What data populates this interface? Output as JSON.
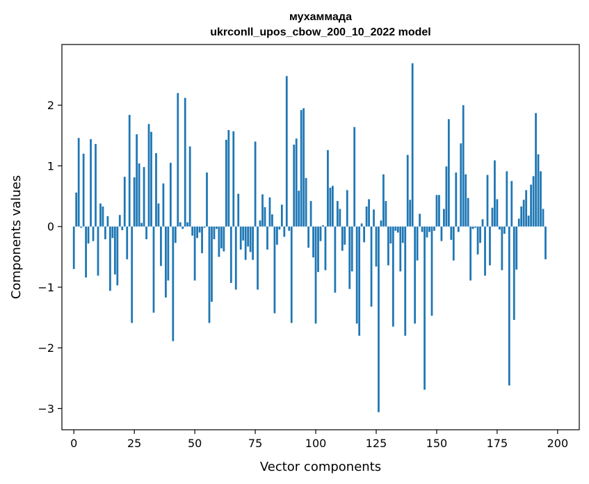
{
  "chart_data": {
    "type": "bar",
    "title_lines": [
      "мухаммада",
      "ukrconll_upos_cbow_200_10_2022 model"
    ],
    "xlabel": "Vector components",
    "ylabel": "Components values",
    "xlim": [
      -4.95,
      208.95
    ],
    "ylim": [
      -3.35,
      3.0
    ],
    "x_ticks": [
      0,
      25,
      50,
      75,
      100,
      125,
      150,
      175,
      200
    ],
    "y_ticks": [
      -3,
      -2,
      -1,
      0,
      1,
      2
    ],
    "y_tick_labels": [
      "−3",
      "−2",
      "−1",
      "0",
      "1",
      "2"
    ],
    "bar_color": "#1f77b4",
    "grid": false,
    "values": [
      -0.7,
      0.56,
      1.46,
      -0.02,
      1.2,
      -0.84,
      -0.28,
      1.44,
      -0.24,
      1.36,
      -0.81,
      0.38,
      0.33,
      -0.21,
      0.17,
      -1.06,
      -0.19,
      -0.79,
      -0.97,
      0.19,
      -0.06,
      0.82,
      -0.54,
      1.84,
      -1.59,
      0.81,
      1.52,
      1.04,
      0.06,
      0.98,
      -0.21,
      1.69,
      1.56,
      -1.42,
      1.21,
      0.38,
      -0.65,
      0.71,
      -1.17,
      -0.89,
      1.05,
      -1.89,
      -0.27,
      2.2,
      0.07,
      -0.04,
      2.12,
      0.07,
      1.32,
      -0.15,
      -0.89,
      -0.19,
      -0.1,
      -0.44,
      -0.02,
      0.89,
      -1.59,
      -1.24,
      -0.21,
      -0.04,
      -0.5,
      -0.36,
      -0.41,
      1.43,
      1.59,
      -0.93,
      1.57,
      -1.04,
      0.54,
      -0.38,
      -0.23,
      -0.55,
      -0.33,
      -0.42,
      -0.55,
      1.4,
      -1.04,
      0.1,
      0.53,
      0.32,
      -0.38,
      0.48,
      0.2,
      -1.43,
      -0.3,
      -0.05,
      0.36,
      -0.17,
      2.48,
      -0.07,
      -1.59,
      1.35,
      1.45,
      0.59,
      1.92,
      1.95,
      0.8,
      -0.35,
      0.42,
      -0.51,
      -1.6,
      -0.75,
      -0.24,
      0.02,
      -0.72,
      1.26,
      0.64,
      0.67,
      -1.09,
      0.42,
      0.29,
      -0.4,
      -0.3,
      0.6,
      -1.03,
      -0.74,
      1.64,
      -1.6,
      -1.8,
      0.05,
      -0.26,
      0.33,
      0.45,
      -1.32,
      0.28,
      -0.66,
      -3.06,
      0.1,
      0.86,
      0.42,
      -0.64,
      -0.28,
      -1.65,
      -0.07,
      -0.1,
      -0.74,
      -0.27,
      -1.8,
      1.18,
      0.44,
      2.69,
      -1.6,
      -0.56,
      0.21,
      -0.09,
      -2.69,
      -0.18,
      -0.09,
      -1.47,
      -0.07,
      0.52,
      0.52,
      -0.24,
      0.29,
      0.99,
      1.77,
      -0.22,
      -0.56,
      0.89,
      -0.09,
      1.37,
      2.0,
      0.86,
      0.47,
      -0.89,
      -0.04,
      -0.02,
      -0.46,
      -0.27,
      0.12,
      -0.81,
      0.85,
      -0.64,
      0.31,
      1.09,
      0.45,
      -0.05,
      -0.72,
      -0.12,
      0.91,
      -2.62,
      0.75,
      -1.54,
      -0.71,
      0.13,
      0.33,
      0.44,
      0.6,
      0.18,
      0.69,
      0.83,
      1.87,
      1.19,
      0.91,
      0.29,
      -0.54
    ]
  }
}
